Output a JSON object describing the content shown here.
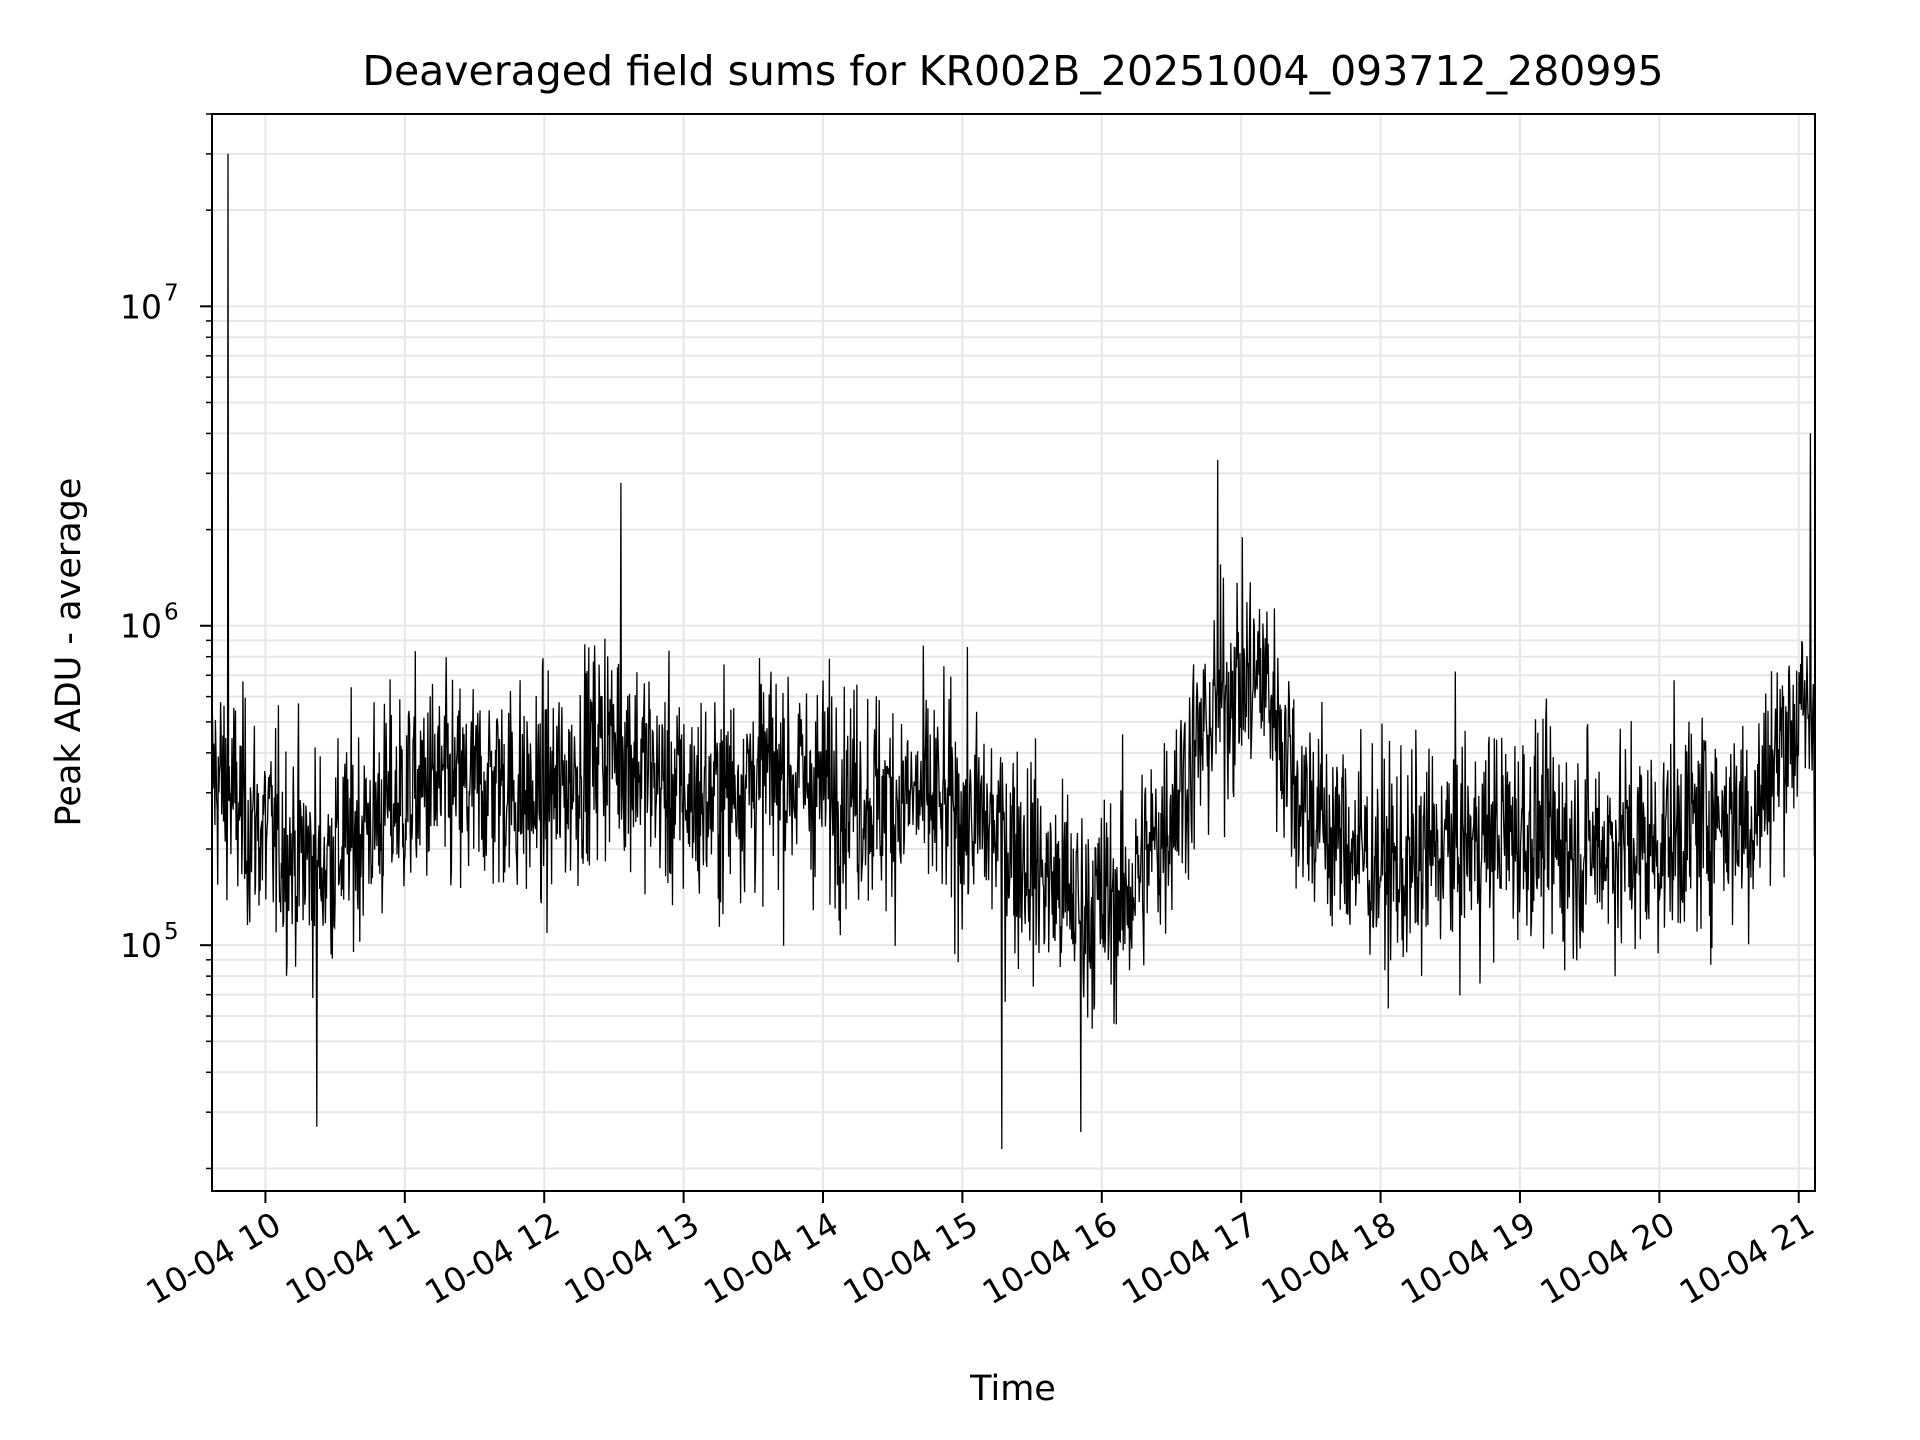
{
  "chart_data": {
    "type": "line",
    "title": "Deaveraged field sums for KR002B_20251004_093712_280995",
    "xlabel": "Time",
    "ylabel": "Peak ADU - average",
    "x_ticks": [
      "10-04 10",
      "10-04 11",
      "10-04 12",
      "10-04 13",
      "10-04 14",
      "10-04 15",
      "10-04 16",
      "10-04 17",
      "10-04 18",
      "10-04 19",
      "10-04 20",
      "10-04 21"
    ],
    "y_ticks": [
      {
        "base": "10",
        "exp": "5",
        "value": 100000
      },
      {
        "base": "10",
        "exp": "6",
        "value": 1000000
      },
      {
        "base": "10",
        "exp": "7",
        "value": 10000000
      }
    ],
    "x_range": [
      "10-04 09:37",
      "10-04 21:07"
    ],
    "ylim": [
      17000,
      40000000
    ],
    "y_scale": "log",
    "grid": true,
    "line_color": "#000000",
    "grid_color": "#e6e6e6",
    "series": [
      {
        "x": [
          "10-04 09:37",
          "10-04 09:52",
          "10-04 10:10",
          "10-04 10:25",
          "10-04 10:40",
          "10-04 10:55",
          "10-04 11:10",
          "10-04 11:25",
          "10-04 11:40",
          "10-04 11:55",
          "10-04 12:10",
          "10-04 12:25",
          "10-04 12:40",
          "10-04 12:55",
          "10-04 13:10",
          "10-04 13:25",
          "10-04 13:40",
          "10-04 13:55",
          "10-04 14:10",
          "10-04 14:25",
          "10-04 14:40",
          "10-04 14:55",
          "10-04 15:10",
          "10-04 15:25",
          "10-04 15:40",
          "10-04 15:55",
          "10-04 16:10",
          "10-04 16:25",
          "10-04 16:40",
          "10-04 16:55",
          "10-04 17:10",
          "10-04 17:25",
          "10-04 17:40",
          "10-04 17:55",
          "10-04 18:10",
          "10-04 18:25",
          "10-04 18:40",
          "10-04 18:55",
          "10-04 19:10",
          "10-04 19:25",
          "10-04 19:40",
          "10-04 19:55",
          "10-04 20:10",
          "10-04 20:25",
          "10-04 20:40",
          "10-04 20:55",
          "10-04 21:05"
        ],
        "y": [
          350000,
          250000,
          200000,
          180000,
          230000,
          280000,
          320000,
          300000,
          330000,
          280000,
          320000,
          450000,
          380000,
          300000,
          280000,
          330000,
          350000,
          320000,
          310000,
          280000,
          290000,
          260000,
          240000,
          200000,
          150000,
          130000,
          140000,
          220000,
          400000,
          650000,
          700000,
          300000,
          220000,
          190000,
          170000,
          200000,
          210000,
          230000,
          220000,
          200000,
          210000,
          200000,
          230000,
          260000,
          250000,
          480000,
          520000
        ]
      }
    ],
    "spikes": [
      {
        "x": "10-04 09:44",
        "y": 30000000
      },
      {
        "x": "10-04 12:33",
        "y": 2800000
      },
      {
        "x": "10-04 16:50",
        "y": 3300000
      },
      {
        "x": "10-04 21:05",
        "y": 4000000
      },
      {
        "x": "10-04 10:22",
        "y": 27000
      },
      {
        "x": "10-04 15:17",
        "y": 23000
      },
      {
        "x": "10-04 15:51",
        "y": 26000
      }
    ]
  }
}
